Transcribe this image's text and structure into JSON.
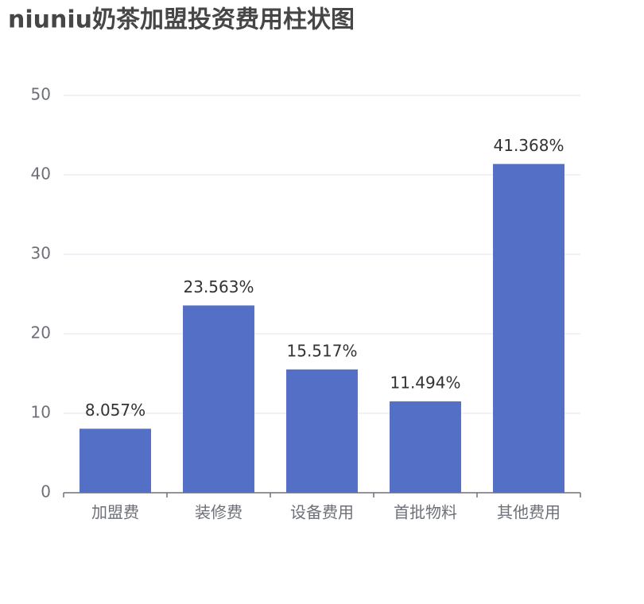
{
  "chart_data": {
    "type": "bar",
    "title": "niuniu奶茶加盟投资费用柱状图",
    "categories": [
      "加盟费",
      "装修费",
      "设备费用",
      "首批物料",
      "其他费用"
    ],
    "values": [
      8.057,
      23.563,
      15.517,
      11.494,
      41.368
    ],
    "value_labels": [
      "8.057%",
      "23.563%",
      "15.517%",
      "11.494%",
      "41.368%"
    ],
    "color": "#5470c6",
    "ylim": [
      0,
      50
    ],
    "yticks": [
      0,
      10,
      20,
      30,
      40,
      50
    ],
    "grid": true
  }
}
